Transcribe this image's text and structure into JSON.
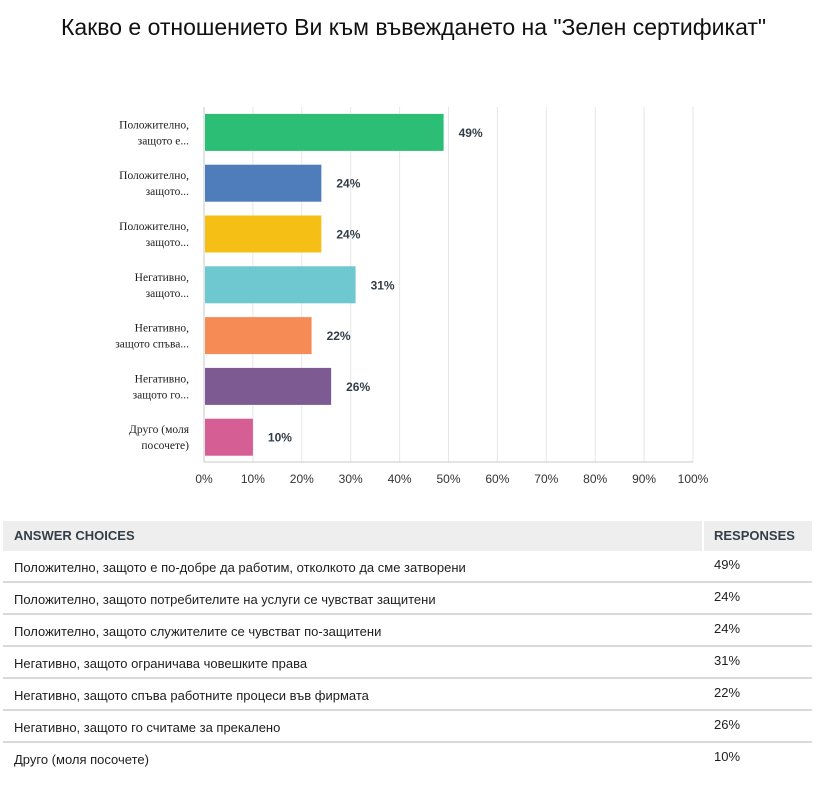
{
  "title": "Какво е отношението Ви към въвеждането на \"Зелен сертификат\"",
  "chart_data": {
    "type": "bar",
    "orientation": "horizontal",
    "title": "Какво е отношението Ви към въвеждането на \"Зелен сертификат\"",
    "categories": [
      [
        "Положително,",
        "защото е..."
      ],
      [
        "Положително,",
        "защото..."
      ],
      [
        "Положително,",
        "защото..."
      ],
      [
        "Негативно,",
        "защото..."
      ],
      [
        "Негативно,",
        "защото спъва..."
      ],
      [
        "Негативно,",
        "защото го..."
      ],
      [
        "Друго (моля",
        "посочете)"
      ]
    ],
    "values": [
      49,
      24,
      24,
      31,
      22,
      26,
      10
    ],
    "value_labels": [
      "49%",
      "24%",
      "24%",
      "31%",
      "22%",
      "26%",
      "10%"
    ],
    "colors": [
      "#2dbe76",
      "#4f7dbb",
      "#f6bf16",
      "#6dc9cf",
      "#f78b55",
      "#7d5b92",
      "#d55e94"
    ],
    "xlim": [
      0,
      100
    ],
    "xticks": [
      "0%",
      "10%",
      "20%",
      "30%",
      "40%",
      "50%",
      "60%",
      "70%",
      "80%",
      "90%",
      "100%"
    ],
    "grid": true
  },
  "table": {
    "header": {
      "choices": "ANSWER CHOICES",
      "responses": "RESPONSES"
    },
    "rows": [
      {
        "choice": "Положително, защото е по-добре да работим, отколкото да сме затворени",
        "response": "49%"
      },
      {
        "choice": "Положително, защото потребителите на услуги се чувстват защитени",
        "response": "24%"
      },
      {
        "choice": "Положително, защото служителите се чувстват по-защитени",
        "response": "24%"
      },
      {
        "choice": "Негативно, защото ограничава човешките права",
        "response": "31%"
      },
      {
        "choice": "Негативно, защото спъва работните процеси във фирмата",
        "response": "22%"
      },
      {
        "choice": "Негативно, защото го считаме за прекалено",
        "response": "26%"
      },
      {
        "choice": "Друго (моля посочете)",
        "response": "10%"
      }
    ]
  }
}
